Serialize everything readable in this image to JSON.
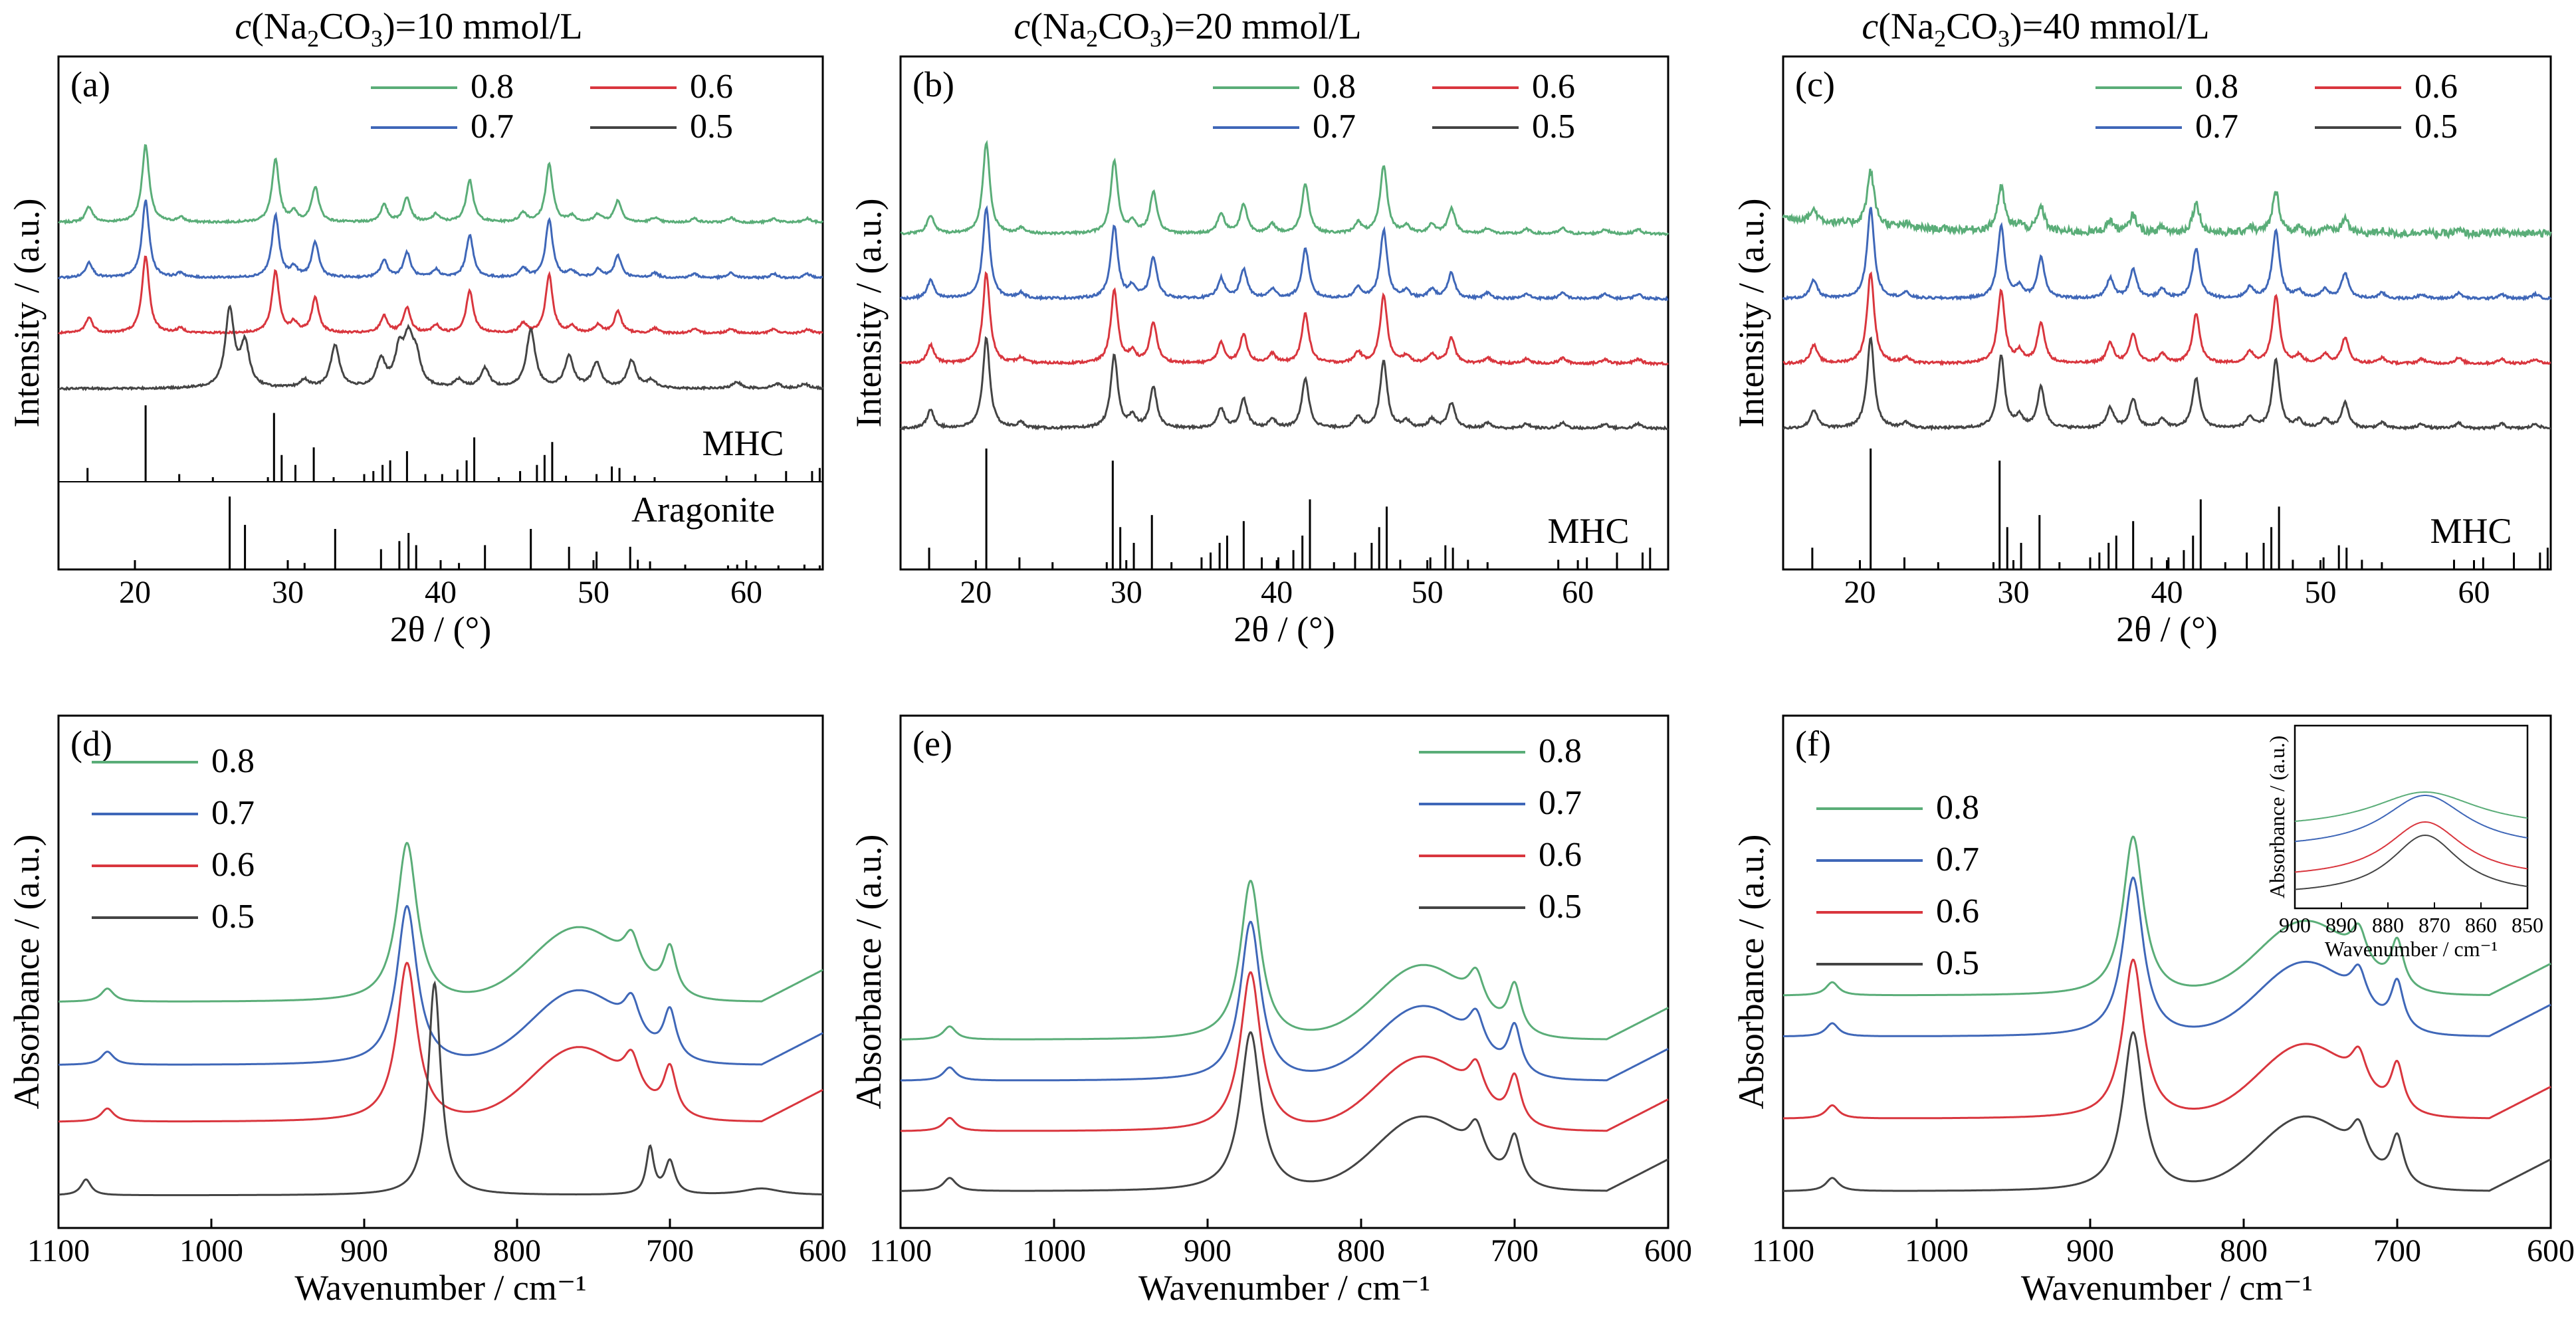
{
  "column_titles": [
    {
      "c": "c",
      "open": "(Na",
      "sub1": "2",
      "mid": "CO",
      "sub2": "3",
      "rest": ")=10 mmol/L"
    },
    {
      "c": "c",
      "open": "(Na",
      "sub1": "2",
      "mid": "CO",
      "sub2": "3",
      "rest": ")=20 mmol/L"
    },
    {
      "c": "c",
      "open": "(Na",
      "sub1": "2",
      "mid": "CO",
      "sub2": "3",
      "rest": ")=40 mmol/L"
    }
  ],
  "colors": {
    "0.8": "#5aad78",
    "0.7": "#3f67b8",
    "0.6": "#d9363e",
    "0.5": "#444444"
  },
  "chart_data": [
    {
      "panel": "(a)",
      "type": "line",
      "kind": "xrd",
      "xlabel": "2θ / (°)",
      "ylabel": "Intensity / (a.u.)",
      "xlim": [
        15,
        65
      ],
      "xticks": [
        20,
        30,
        40,
        50,
        60
      ],
      "legend": {
        "layout": "grid2x2",
        "entries": [
          "0.8",
          "0.6",
          "0.7",
          "0.5"
        ]
      },
      "series": [
        {
          "name": "0.8",
          "offset": 3,
          "phase": "MHC",
          "amp": 1.0
        },
        {
          "name": "0.7",
          "offset": 2,
          "phase": "MHC",
          "amp": 1.0
        },
        {
          "name": "0.6",
          "offset": 1,
          "phase": "MHC",
          "amp": 1.0
        },
        {
          "name": "0.5",
          "offset": 0,
          "phase": "Aragonite",
          "amp": 1.0
        }
      ],
      "reference_labels": [
        "MHC",
        "Aragonite"
      ]
    },
    {
      "panel": "(b)",
      "type": "line",
      "kind": "xrd",
      "xlabel": "2θ / (°)",
      "ylabel": "Intensity / (a.u.)",
      "xlim": [
        15,
        66
      ],
      "xticks": [
        20,
        30,
        40,
        50,
        60
      ],
      "legend": {
        "layout": "grid2x2",
        "entries": [
          "0.8",
          "0.6",
          "0.7",
          "0.5"
        ]
      },
      "series": [
        {
          "name": "0.8",
          "offset": 3,
          "phase": "MHC",
          "amp": 1.0
        },
        {
          "name": "0.7",
          "offset": 2,
          "phase": "MHC",
          "amp": 1.0
        },
        {
          "name": "0.6",
          "offset": 1,
          "phase": "MHC",
          "amp": 1.0
        },
        {
          "name": "0.5",
          "offset": 0,
          "phase": "MHC",
          "amp": 1.0
        }
      ],
      "reference_labels": [
        "MHC"
      ]
    },
    {
      "panel": "(c)",
      "type": "line",
      "kind": "xrd",
      "xlabel": "2θ / (°)",
      "ylabel": "Intensity / (a.u.)",
      "xlim": [
        15,
        65
      ],
      "xticks": [
        20,
        30,
        40,
        50,
        60
      ],
      "legend": {
        "layout": "grid2x2",
        "entries": [
          "0.8",
          "0.6",
          "0.7",
          "0.5"
        ]
      },
      "series": [
        {
          "name": "0.8",
          "offset": 3,
          "phase": "MHC",
          "amp": 0.6
        },
        {
          "name": "0.7",
          "offset": 2,
          "phase": "MHC",
          "amp": 1.0
        },
        {
          "name": "0.6",
          "offset": 1,
          "phase": "MHC",
          "amp": 1.0
        },
        {
          "name": "0.5",
          "offset": 0,
          "phase": "MHC",
          "amp": 1.0
        }
      ],
      "reference_labels": [
        "MHC"
      ]
    },
    {
      "panel": "(d)",
      "type": "line",
      "kind": "ftir",
      "xlabel": "Wavenumber / cm⁻¹",
      "ylabel": "Absorbance / (a.u.)",
      "xlim": [
        1100,
        600
      ],
      "xticks": [
        1100,
        1000,
        900,
        800,
        700,
        600
      ],
      "legend": {
        "layout": "column",
        "entries": [
          "0.8",
          "0.7",
          "0.6",
          "0.5"
        ]
      },
      "series": [
        {
          "name": "0.8",
          "offset": 3.0,
          "phase": "MHC"
        },
        {
          "name": "0.7",
          "offset": 2.0,
          "phase": "MHC"
        },
        {
          "name": "0.6",
          "offset": 1.1,
          "phase": "MHC"
        },
        {
          "name": "0.5",
          "offset": 0,
          "phase": "Aragonite"
        }
      ]
    },
    {
      "panel": "(e)",
      "type": "line",
      "kind": "ftir",
      "xlabel": "Wavenumber / cm⁻¹",
      "ylabel": "Absorbance / (a.u.)",
      "xlim": [
        1100,
        600
      ],
      "xticks": [
        1100,
        1000,
        900,
        800,
        700,
        600
      ],
      "legend": {
        "layout": "column",
        "entries": [
          "0.8",
          "0.7",
          "0.6",
          "0.5"
        ]
      },
      "series": [
        {
          "name": "0.8",
          "offset": 2.4,
          "phase": "MHC"
        },
        {
          "name": "0.7",
          "offset": 1.75,
          "phase": "MHC"
        },
        {
          "name": "0.6",
          "offset": 0.95,
          "phase": "MHC"
        },
        {
          "name": "0.5",
          "offset": 0,
          "phase": "MHC"
        }
      ]
    },
    {
      "panel": "(f)",
      "type": "line",
      "kind": "ftir",
      "xlabel": "Wavenumber / cm⁻¹",
      "ylabel": "Absorbance / (a.u.)",
      "xlim": [
        1100,
        600
      ],
      "xticks": [
        1100,
        1000,
        900,
        800,
        700,
        600
      ],
      "legend": {
        "layout": "column",
        "entries": [
          "0.8",
          "0.7",
          "0.6",
          "0.5"
        ]
      },
      "series": [
        {
          "name": "0.8",
          "offset": 3.1,
          "phase": "MHC"
        },
        {
          "name": "0.7",
          "offset": 2.45,
          "phase": "MHC"
        },
        {
          "name": "0.6",
          "offset": 1.15,
          "phase": "MHC"
        },
        {
          "name": "0.5",
          "offset": 0,
          "phase": "MHC"
        }
      ],
      "inset": {
        "xlabel": "Wavenumber / cm⁻¹",
        "ylabel": "Absorbance / (a.u.)",
        "xlim": [
          900,
          850
        ],
        "xticks": [
          900,
          890,
          880,
          870,
          860,
          850
        ]
      }
    }
  ]
}
